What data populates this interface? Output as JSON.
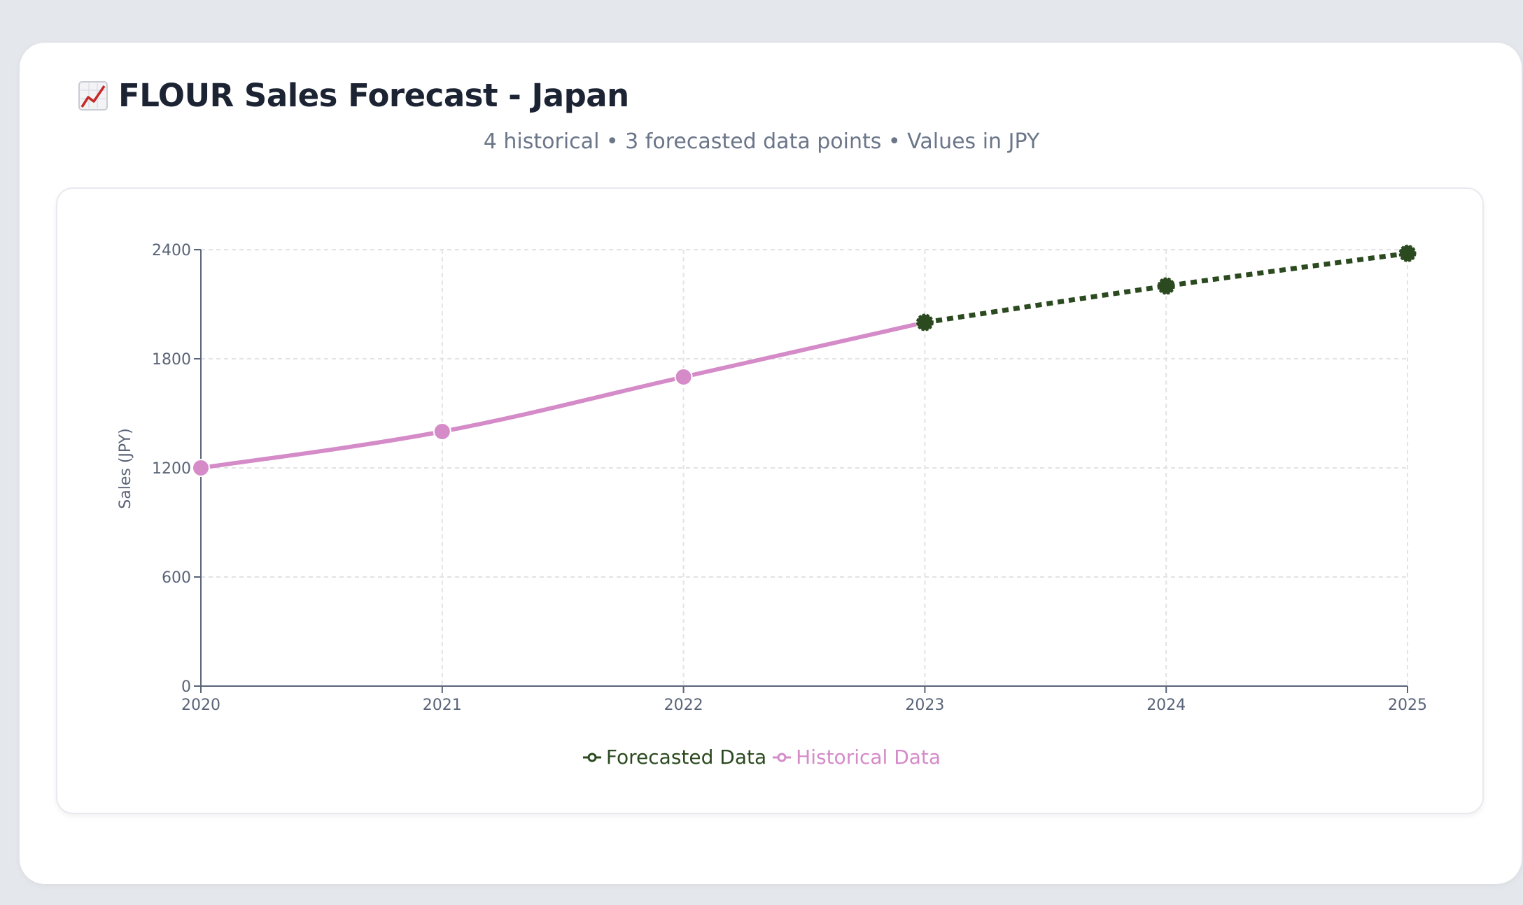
{
  "header": {
    "title": "FLOUR Sales Forecast - Japan",
    "title_icon": "chart-increasing-icon",
    "subtitle": "4 historical • 3 forecasted data points • Values in JPY"
  },
  "colors": {
    "historical": "#d48bc8",
    "forecast": "#2b4a1f",
    "axis": "#5a6478",
    "grid": "#e3e3e3"
  },
  "chart_data": {
    "type": "line",
    "x": [
      2020,
      2021,
      2022,
      2023,
      2024,
      2025
    ],
    "xticks": [
      "2020",
      "2021",
      "2022",
      "2023",
      "2024",
      "2025"
    ],
    "yticks": [
      "0",
      "600",
      "1200",
      "1800",
      "2400"
    ],
    "ylabel": "Sales (JPY)",
    "xlabel": "",
    "ylim": [
      0,
      2400
    ],
    "grid": true,
    "legend_position": "bottom-center",
    "series": [
      {
        "name": "Forecasted Data",
        "style": "dotted",
        "x": [
          2023,
          2024,
          2025
        ],
        "values": [
          2000,
          2200,
          2380
        ]
      },
      {
        "name": "Historical Data",
        "style": "solid",
        "x": [
          2020,
          2021,
          2022,
          2023
        ],
        "values": [
          1200,
          1400,
          1700,
          2000
        ]
      }
    ]
  }
}
